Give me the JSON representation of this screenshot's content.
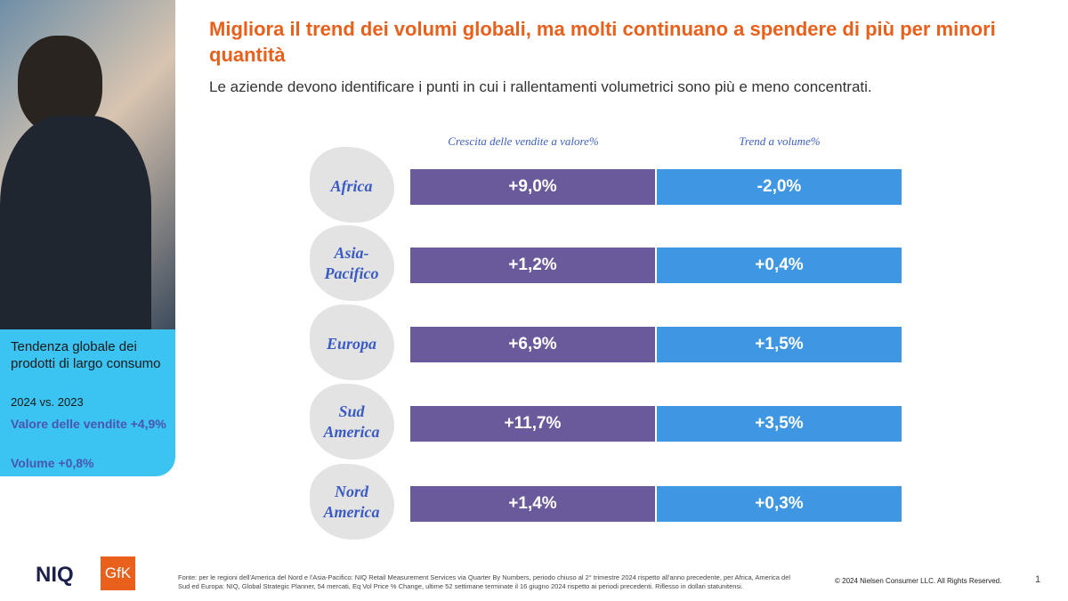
{
  "header": {
    "title": "Migliora il trend dei volumi globali, ma molti continuano a spendere di più per minori quantità",
    "subtitle": "Le aziende devono identificare i punti in cui i rallentamenti volumetrici sono più e meno concentrati."
  },
  "sidebar": {
    "heading": "Tendenza globale dei prodotti di largo consumo",
    "period": "2024 vs. 2023",
    "value_line": "Valore delle vendite +4,9%",
    "volume_line": "Volume +0,8%"
  },
  "table": {
    "columns": [
      "Crescita delle vendite a valore%",
      "Trend a volume%"
    ],
    "rows": [
      [
        "Africa",
        "+9,0%",
        "-2,0%"
      ],
      [
        "Asia-\nPacifico",
        "+1,2%",
        "+0,4%"
      ],
      [
        "Europa",
        "+6,9%",
        "+1,5%"
      ],
      [
        "Sud\nAmerica",
        "+11,7%",
        "+3,5%"
      ],
      [
        "Nord\nAmerica",
        "+1,4%",
        "+0,3%"
      ]
    ]
  },
  "footer": {
    "logo_left": "NIQ",
    "logo_right": "GfK",
    "source": "Fonte: per le regioni dell'America del Nord e l'Asia-Pacifico: NIQ Retail Measurement Services via Quarter By Numbers, periodo chiuso al 2° trimestre 2024 rispetto all'anno precedente, per Africa, America del Sud ed Europa: NIQ, Global Strategic Planner, 54 mercati, Eq Vol Price % Change, ultime 52 settimane terminate il 16 giugno 2024 rispetto ai periodi precedenti. Riflesso in dollari statunitensi.",
    "copyright": "© 2024 Nielsen Consumer LLC. All Rights Reserved.",
    "page": "1"
  }
}
